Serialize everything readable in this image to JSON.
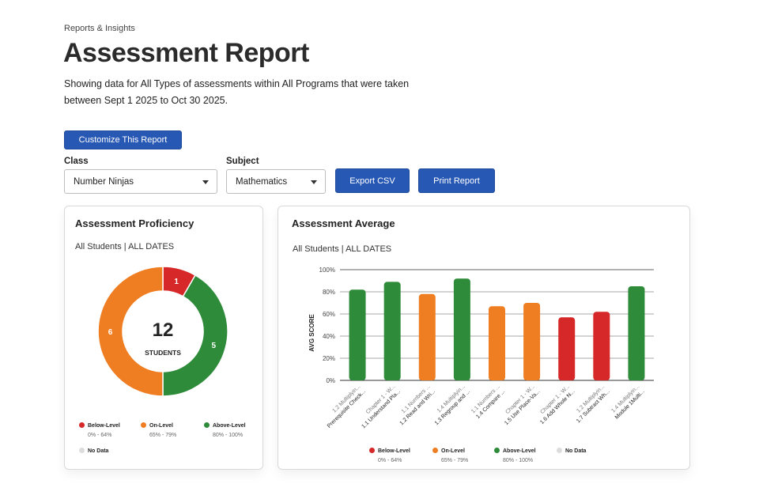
{
  "header": {
    "breadcrumb": "Reports & Insights",
    "title": "Assessment Report",
    "description": "Showing data for All Types of assessments within All Programs that were taken between Sept 1 2025 to Oct 30 2025."
  },
  "toolbar": {
    "customize_label": "Customize This Report",
    "class_label": "Class",
    "class_value": "Number Ninjas",
    "subject_label": "Subject",
    "subject_value": "Mathematics",
    "export_label": "Export CSV",
    "print_label": "Print Report"
  },
  "proficiency": {
    "title": "Assessment Proficiency",
    "subtitle": "All Students | ALL DATES",
    "total": "12",
    "total_label": "STUDENTS",
    "segments": [
      {
        "label": "1",
        "value": 1,
        "color": "#d62828"
      },
      {
        "label": "5",
        "value": 5,
        "color": "#2e8b3a"
      },
      {
        "label": "6",
        "value": 6,
        "color": "#ef7d22"
      }
    ],
    "legend": [
      {
        "name": "Below-Level",
        "range": "0% - 64%",
        "color": "#d62828"
      },
      {
        "name": "On-Level",
        "range": "65% - 79%",
        "color": "#ef7d22"
      },
      {
        "name": "Above-Level",
        "range": "80% - 100%",
        "color": "#2e8b3a"
      },
      {
        "name": "No Data",
        "range": "",
        "color": "#dcdcdc"
      }
    ]
  },
  "average": {
    "title": "Assessment Average",
    "subtitle": "All Students | ALL DATES",
    "legend": [
      {
        "name": "Below-Level",
        "range": "0% - 64%",
        "color": "#d62828"
      },
      {
        "name": "On-Level",
        "range": "65% - 79%",
        "color": "#ef7d22"
      },
      {
        "name": "Above-Level",
        "range": "80% - 100%",
        "color": "#2e8b3a"
      },
      {
        "name": "No Data",
        "range": "",
        "color": "#dcdcdc"
      }
    ]
  },
  "chart_data": [
    {
      "type": "pie",
      "categories": [
        "Below-Level",
        "Above-Level",
        "On-Level"
      ],
      "values": [
        1,
        5,
        6
      ],
      "colors": [
        "#d62828",
        "#2e8b3a",
        "#ef7d22"
      ]
    },
    {
      "type": "bar",
      "ylabel": "AVG SCORE",
      "ylim": [
        0,
        100
      ],
      "yticks": [
        "0%",
        "20%",
        "40%",
        "60%",
        "80%",
        "100%"
      ],
      "grid": true,
      "categories": [
        [
          "1.2 Multiplyin...",
          "Prerequisite Check..."
        ],
        [
          "Chapter 1 - W...",
          "1.1 Understand Pla..."
        ],
        [
          "1.1 Numbers ...",
          "1.2 Read and Wri..."
        ],
        [
          "1.4 Multiplyin...",
          "1.3 Regroup and ..."
        ],
        [
          "1.1 Numbers ...",
          "1.4 Compare ..."
        ],
        [
          "Chapter 1 - W...",
          "1.5 Use Place-Va..."
        ],
        [
          "Chapter 1 - W...",
          "1.6 Add Whole N..."
        ],
        [
          "1.2 Multiplyin...",
          "1.7 Subtract Wh..."
        ],
        [
          "1.4 Multiplyin...",
          "Module 1Multi..."
        ]
      ],
      "values": [
        82,
        89,
        78,
        92,
        67,
        70,
        57,
        62,
        85
      ],
      "colors": [
        "#2e8b3a",
        "#2e8b3a",
        "#ef7d22",
        "#2e8b3a",
        "#ef7d22",
        "#ef7d22",
        "#d62828",
        "#d62828",
        "#2e8b3a"
      ]
    }
  ]
}
